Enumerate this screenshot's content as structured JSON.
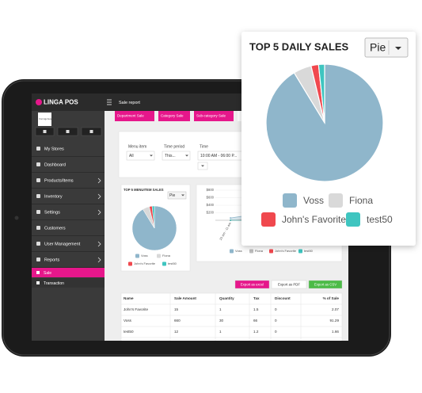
{
  "brand": "LINGA POS",
  "header": {
    "title": "Sale report"
  },
  "logo_text": "Your logo here",
  "sidebar": {
    "items": [
      {
        "label": "My Stores",
        "arrow": false
      },
      {
        "label": "Dashboard",
        "arrow": false
      },
      {
        "label": "Products/Items",
        "arrow": true
      },
      {
        "label": "Inventory",
        "arrow": true
      },
      {
        "label": "Settings",
        "arrow": true
      },
      {
        "label": "Customers",
        "arrow": false
      },
      {
        "label": "User Management",
        "arrow": true
      },
      {
        "label": "Reports",
        "arrow": true
      }
    ],
    "subitems": [
      "Sale",
      "Transaction"
    ]
  },
  "tabs": [
    "Department Sale",
    "Category Sale",
    "Sub-category Sale"
  ],
  "filters": [
    {
      "label": "Menu item",
      "value": "All"
    },
    {
      "label": "Time period",
      "value": "This..."
    },
    {
      "label": "Time",
      "value": "10:00 AM - 06:00 P..."
    }
  ],
  "small_chart": {
    "title": "TOP 5 MENUITEM SALES",
    "selector": "Pie"
  },
  "pie": {
    "names": [
      "Voss",
      "Fiona",
      "John's Favorite",
      "test50"
    ],
    "colors": [
      "#8fb6cb",
      "#d9d9d9",
      "#f0484e",
      "#3fc5c0"
    ],
    "values": [
      91.29,
      4.98,
      2.07,
      1.66
    ]
  },
  "line_chart": {
    "type": "line",
    "categories": [
      "10 am - 11 am",
      "11 am - 12 pm",
      "12 pm - 01 pm",
      "01 pm - 02 pm"
    ],
    "ylim": [
      0,
      800
    ],
    "yticks": [
      {
        "value": 200,
        "label": "$200"
      },
      {
        "value": 400,
        "label": "$400"
      },
      {
        "value": 600,
        "label": "$600"
      },
      {
        "value": 800,
        "label": "$800"
      }
    ],
    "series": [
      {
        "name": "Voss",
        "color": "#8fb6cb",
        "values": [
          60,
          180,
          360,
          60
        ]
      },
      {
        "name": "Fiona",
        "color": "#bdbdbd",
        "values": [
          0,
          0,
          36,
          0
        ]
      },
      {
        "name": "John's Favorite",
        "color": "#f0484e",
        "values": [
          0,
          15,
          0,
          0
        ]
      },
      {
        "name": "test50",
        "color": "#3fc5c0",
        "values": [
          0,
          0,
          12,
          0
        ]
      }
    ]
  },
  "buttons": [
    "Export as excel",
    "Export as PDF",
    "Export as CSV"
  ],
  "table": {
    "headers": [
      "Name",
      "Sale Amount",
      "Quantity",
      "Tax",
      "Discount",
      "% of Sale"
    ],
    "rows": [
      [
        "John's Favorite",
        "15",
        "1",
        "1.5",
        "0",
        "2.07"
      ],
      [
        "Voss",
        "660",
        "30",
        "66",
        "0",
        "91.29"
      ],
      [
        "test50",
        "12",
        "1",
        "1.2",
        "0",
        "1.66"
      ]
    ]
  },
  "popup": {
    "title": "TOP 5 DAILY SALES",
    "selector": "Pie"
  }
}
